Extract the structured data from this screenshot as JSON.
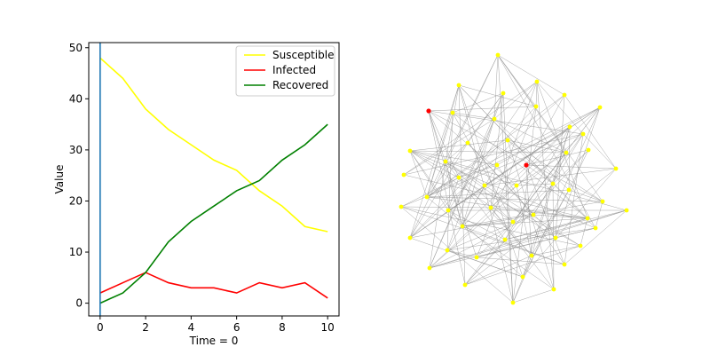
{
  "chart_data": [
    {
      "type": "line",
      "title": "",
      "xlabel": "Time = 0",
      "ylabel": "Value",
      "xlim": [
        -0.5,
        10.5
      ],
      "ylim": [
        -2.5,
        51
      ],
      "xticks": [
        0,
        2,
        4,
        6,
        8,
        10
      ],
      "yticks": [
        0,
        10,
        20,
        30,
        40,
        50
      ],
      "x": [
        0,
        1,
        2,
        3,
        4,
        5,
        6,
        7,
        8,
        9,
        10
      ],
      "series": [
        {
          "name": "Susceptible",
          "color": "#ffff00",
          "values": [
            48,
            44,
            38,
            34,
            31,
            28,
            26,
            22,
            19,
            15,
            14
          ]
        },
        {
          "name": "Infected",
          "color": "#ff0000",
          "values": [
            2,
            4,
            6,
            4,
            3,
            3,
            2,
            4,
            3,
            4,
            1
          ]
        },
        {
          "name": "Recovered",
          "color": "#008000",
          "values": [
            0,
            2,
            6,
            12,
            16,
            19,
            22,
            24,
            28,
            31,
            35
          ]
        }
      ],
      "vline": {
        "x": 0,
        "color": "#1f77b4"
      },
      "legend": "top-right"
    },
    {
      "type": "network",
      "title": "",
      "node_count": 50,
      "infected_nodes": 2,
      "susceptible_color": "#ffff00",
      "infected_color": "#ff0000",
      "edge_color": "#888888"
    }
  ]
}
